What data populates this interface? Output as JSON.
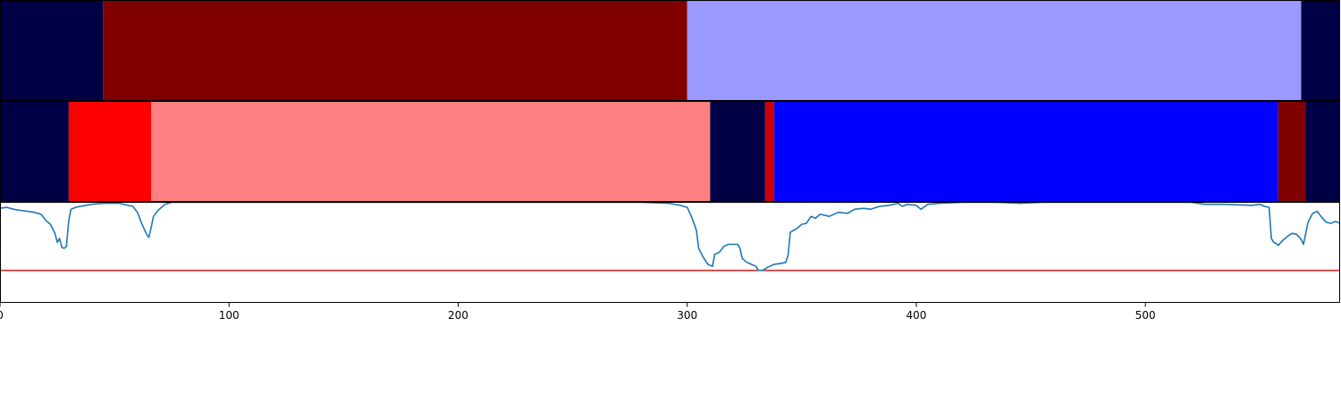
{
  "chart_data": {
    "type": "segmentation-timeline",
    "title": "",
    "xlabel": "",
    "ylabel": "",
    "xlim": [
      0,
      585
    ],
    "x_ticks": [
      "0",
      "100",
      "200",
      "300",
      "400",
      "500"
    ],
    "grid": false,
    "legend": "none",
    "panels": [
      {
        "name": "",
        "segments": [
          {
            "start": 0,
            "end": 45,
            "color": "#000044"
          },
          {
            "start": 45,
            "end": 300,
            "color": "#800000"
          },
          {
            "start": 300,
            "end": 568,
            "color": "#9999ff"
          },
          {
            "start": 568,
            "end": 585,
            "color": "#000044"
          }
        ]
      },
      {
        "name": "",
        "segments": [
          {
            "start": 0,
            "end": 30,
            "color": "#000044"
          },
          {
            "start": 30,
            "end": 66,
            "color": "#ff0000"
          },
          {
            "start": 66,
            "end": 310,
            "color": "#ff8080"
          },
          {
            "start": 310,
            "end": 334,
            "color": "#000044"
          },
          {
            "start": 334,
            "end": 338,
            "color": "#cc0000"
          },
          {
            "start": 338,
            "end": 558,
            "color": "#0000ff"
          },
          {
            "start": 558,
            "end": 570,
            "color": "#800000"
          },
          {
            "start": 570,
            "end": 585,
            "color": "#000044"
          }
        ]
      }
    ],
    "line_panel": {
      "ylim": [
        0,
        1
      ],
      "threshold": 0.32,
      "threshold_color": "#d62728",
      "line_color": "#1f77b4",
      "points": [
        [
          0,
          0.94
        ],
        [
          3,
          0.95
        ],
        [
          6,
          0.93
        ],
        [
          9,
          0.92
        ],
        [
          12,
          0.91
        ],
        [
          15,
          0.9
        ],
        [
          18,
          0.88
        ],
        [
          20,
          0.82
        ],
        [
          22,
          0.78
        ],
        [
          24,
          0.69
        ],
        [
          25,
          0.6
        ],
        [
          26,
          0.64
        ],
        [
          27,
          0.55
        ],
        [
          28,
          0.54
        ],
        [
          29,
          0.56
        ],
        [
          30,
          0.82
        ],
        [
          31,
          0.93
        ],
        [
          33,
          0.95
        ],
        [
          35,
          0.96
        ],
        [
          40,
          0.98
        ],
        [
          45,
          0.99
        ],
        [
          52,
          0.99
        ],
        [
          58,
          0.96
        ],
        [
          60,
          0.9
        ],
        [
          62,
          0.78
        ],
        [
          64,
          0.68
        ],
        [
          65,
          0.65
        ],
        [
          66,
          0.75
        ],
        [
          67,
          0.86
        ],
        [
          69,
          0.92
        ],
        [
          72,
          0.98
        ],
        [
          75,
          1.0
        ],
        [
          100,
          1.0
        ],
        [
          150,
          1.0
        ],
        [
          200,
          1.0
        ],
        [
          250,
          1.0
        ],
        [
          280,
          1.0
        ],
        [
          292,
          0.99
        ],
        [
          297,
          0.97
        ],
        [
          300,
          0.95
        ],
        [
          302,
          0.85
        ],
        [
          304,
          0.72
        ],
        [
          305,
          0.54
        ],
        [
          307,
          0.45
        ],
        [
          309,
          0.38
        ],
        [
          311,
          0.36
        ],
        [
          312,
          0.48
        ],
        [
          314,
          0.5
        ],
        [
          316,
          0.56
        ],
        [
          318,
          0.58
        ],
        [
          320,
          0.58
        ],
        [
          322,
          0.58
        ],
        [
          323,
          0.54
        ],
        [
          324,
          0.44
        ],
        [
          326,
          0.4
        ],
        [
          328,
          0.38
        ],
        [
          330,
          0.36
        ],
        [
          331,
          0.32
        ],
        [
          333,
          0.32
        ],
        [
          335,
          0.35
        ],
        [
          338,
          0.38
        ],
        [
          341,
          0.39
        ],
        [
          343,
          0.4
        ],
        [
          344,
          0.47
        ],
        [
          345,
          0.7
        ],
        [
          348,
          0.74
        ],
        [
          350,
          0.78
        ],
        [
          352,
          0.79
        ],
        [
          354,
          0.86
        ],
        [
          356,
          0.84
        ],
        [
          358,
          0.88
        ],
        [
          362,
          0.86
        ],
        [
          366,
          0.9
        ],
        [
          370,
          0.89
        ],
        [
          373,
          0.93
        ],
        [
          377,
          0.94
        ],
        [
          380,
          0.93
        ],
        [
          384,
          0.96
        ],
        [
          388,
          0.97
        ],
        [
          392,
          0.99
        ],
        [
          394,
          0.96
        ],
        [
          396,
          0.98
        ],
        [
          400,
          0.97
        ],
        [
          402,
          0.93
        ],
        [
          405,
          0.98
        ],
        [
          410,
          0.99
        ],
        [
          420,
          1.0
        ],
        [
          435,
          1.0
        ],
        [
          445,
          0.99
        ],
        [
          455,
          1.0
        ],
        [
          470,
          1.0
        ],
        [
          500,
          1.0
        ],
        [
          520,
          1.0
        ],
        [
          526,
          0.98
        ],
        [
          535,
          0.98
        ],
        [
          546,
          0.97
        ],
        [
          550,
          0.98
        ],
        [
          552,
          0.96
        ],
        [
          554,
          0.95
        ],
        [
          555,
          0.64
        ],
        [
          556,
          0.6
        ],
        [
          557,
          0.59
        ],
        [
          558,
          0.57
        ],
        [
          560,
          0.62
        ],
        [
          562,
          0.66
        ],
        [
          564,
          0.69
        ],
        [
          566,
          0.68
        ],
        [
          568,
          0.63
        ],
        [
          569,
          0.58
        ],
        [
          571,
          0.8
        ],
        [
          573,
          0.89
        ],
        [
          575,
          0.91
        ],
        [
          577,
          0.85
        ],
        [
          579,
          0.8
        ],
        [
          581,
          0.79
        ],
        [
          583,
          0.81
        ],
        [
          585,
          0.79
        ]
      ]
    }
  }
}
